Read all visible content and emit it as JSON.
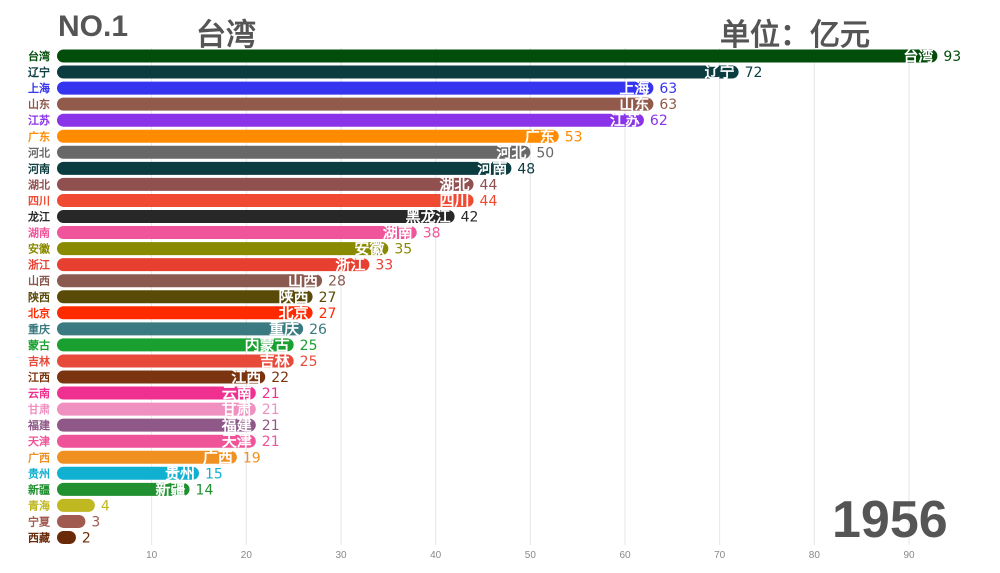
{
  "header": {
    "rank": "NO.1",
    "leader": "台湾",
    "unit": "单位：亿元",
    "year": "1956"
  },
  "chart_data": {
    "type": "bar",
    "orientation": "horizontal",
    "title": "",
    "xlabel": "",
    "ylabel": "",
    "xlim": [
      0,
      93
    ],
    "x_ticks": [
      10,
      20,
      30,
      40,
      50,
      60,
      70,
      80,
      90
    ],
    "grid": "vertical",
    "categories": [
      "台湾",
      "辽宁",
      "上海",
      "山东",
      "江苏",
      "广东",
      "河北",
      "河南",
      "湖北",
      "四川",
      "龙江",
      "湖南",
      "安徽",
      "浙江",
      "山西",
      "陕西",
      "北京",
      "重庆",
      "蒙古",
      "吉林",
      "江西",
      "云南",
      "甘肃",
      "福建",
      "天津",
      "广西",
      "贵州",
      "新疆",
      "青海",
      "宁夏",
      "西藏"
    ],
    "inside_labels": [
      "台湾",
      "辽宁",
      "上海",
      "山东",
      "江苏",
      "广东",
      "河北",
      "河南",
      "湖北",
      "四川",
      "黑龙江",
      "湖南",
      "安徽",
      "浙江",
      "山西",
      "陕西",
      "北京",
      "重庆",
      "内蒙古",
      "吉林",
      "江西",
      "云南",
      "甘肃",
      "福建",
      "天津",
      "广西",
      "贵州",
      "新疆",
      "",
      "",
      ""
    ],
    "values": [
      93,
      72,
      63,
      63,
      62,
      53,
      50,
      48,
      44,
      44,
      42,
      38,
      35,
      33,
      28,
      27,
      27,
      26,
      25,
      25,
      22,
      21,
      21,
      21,
      21,
      19,
      15,
      14,
      4,
      3,
      2
    ],
    "colors": [
      "#034d0b",
      "#0b3c40",
      "#3535f0",
      "#915a4a",
      "#8a33e8",
      "#ff8c00",
      "#686868",
      "#0b3c40",
      "#915050",
      "#f04a32",
      "#282828",
      "#f0549a",
      "#8a8a00",
      "#e84030",
      "#8a5a50",
      "#5a4a08",
      "#ff2a00",
      "#3a7a80",
      "#1aa030",
      "#e84a3a",
      "#7a3410",
      "#f03090",
      "#f090c0",
      "#905888",
      "#f05498",
      "#f09020",
      "#10b0d0",
      "#209030",
      "#c0b820",
      "#a05a50",
      "#6a2a08"
    ]
  }
}
